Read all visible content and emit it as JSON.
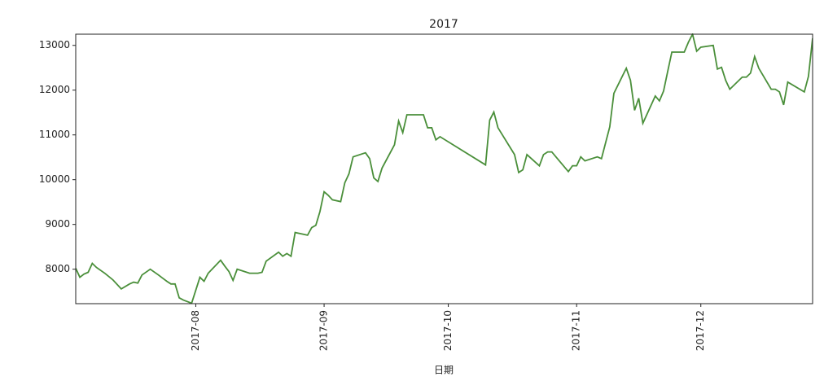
{
  "chart_data": {
    "type": "line",
    "title": "2017",
    "x_label": "日期",
    "x": [
      184,
      185,
      186,
      187,
      188,
      189,
      191,
      193,
      195,
      197,
      198,
      199,
      200,
      202,
      204,
      205,
      206,
      207,
      208,
      209,
      210,
      212,
      214,
      215,
      216,
      219,
      220,
      221,
      222,
      223,
      226,
      228,
      229,
      230,
      233,
      234,
      235,
      236,
      237,
      240,
      241,
      242,
      243,
      244,
      245,
      246,
      248,
      249,
      250,
      251,
      254,
      255,
      256,
      257,
      258,
      261,
      262,
      263,
      264,
      268,
      269,
      270,
      271,
      272,
      283,
      284,
      285,
      286,
      290,
      291,
      292,
      293,
      296,
      297,
      298,
      299,
      300,
      303,
      304,
      305,
      306,
      307,
      310,
      311,
      313,
      314,
      317,
      318,
      319,
      320,
      321,
      324,
      325,
      326,
      327,
      328,
      331,
      332,
      333,
      334,
      335,
      338,
      339,
      340,
      341,
      342,
      345,
      346,
      347,
      348,
      349,
      352,
      353,
      354,
      355,
      356,
      360,
      361,
      362
    ],
    "series": [
      {
        "color": "#4a8f3a",
        "values": [
          8020,
          7820,
          7890,
          7930,
          8130,
          8040,
          7910,
          7760,
          7560,
          7670,
          7710,
          7690,
          7870,
          8000,
          7870,
          7800,
          7730,
          7670,
          7670,
          7360,
          7310,
          7240,
          7820,
          7730,
          7910,
          8200,
          8070,
          7950,
          7750,
          8000,
          7910,
          7910,
          7930,
          8180,
          8380,
          8290,
          8350,
          8290,
          8820,
          8760,
          8930,
          8980,
          9290,
          9730,
          9650,
          9550,
          9510,
          9930,
          10130,
          10510,
          10600,
          10470,
          10040,
          9960,
          10260,
          10780,
          11310,
          11050,
          11450,
          11450,
          11160,
          11160,
          10890,
          10960,
          10330,
          11330,
          11510,
          11160,
          10560,
          10160,
          10220,
          10560,
          10310,
          10560,
          10620,
          10620,
          10510,
          10180,
          10310,
          10310,
          10510,
          10420,
          10510,
          10470,
          11180,
          11930,
          12490,
          12220,
          11550,
          11820,
          11260,
          11870,
          11760,
          11980,
          12420,
          12850,
          12850,
          13070,
          13250,
          12870,
          12960,
          13000,
          12470,
          12510,
          12220,
          12020,
          12290,
          12290,
          12380,
          12750,
          12490,
          12020,
          12020,
          11960,
          11670,
          12180,
          11960,
          12310,
          13160
        ]
      }
    ],
    "xlim": [
      184,
      362
    ],
    "xticks": [
      {
        "value": 213,
        "label": "2017-08"
      },
      {
        "value": 244,
        "label": "2017-09"
      },
      {
        "value": 274,
        "label": "2017-10"
      },
      {
        "value": 305,
        "label": "2017-11"
      },
      {
        "value": 335,
        "label": "2017-12"
      }
    ],
    "ylim": [
      7230,
      13250
    ],
    "yticks": [
      8000,
      9000,
      10000,
      11000,
      12000,
      13000
    ],
    "grid": false
  }
}
